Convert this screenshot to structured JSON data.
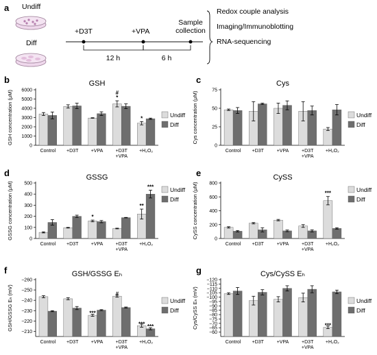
{
  "panel_a": {
    "letter": "a",
    "dish_labels": [
      "Undiff",
      "Diff"
    ],
    "timeline_labels": [
      "+D3T",
      "+VPA",
      "Sample collection"
    ],
    "intervals": [
      "12 h",
      "6 h"
    ],
    "analyses": [
      "Redox couple analysis",
      "Imaging/Immunoblotting",
      "RNA-sequencing"
    ]
  },
  "colors": {
    "undiff": "#dcdcdc",
    "diff": "#6e6e6e",
    "axis": "#000000"
  },
  "legend": [
    "Undiff",
    "Diff"
  ],
  "chart_data": [
    {
      "panel": "b",
      "type": "bar",
      "title": "GSH",
      "ylabel": "GSH concentration (μM)",
      "categories": [
        "Control",
        "+D3T",
        "+VPA",
        "+D3T\n+VPA",
        "+H₂O₂"
      ],
      "ylim": [
        0,
        6000
      ],
      "yticks": [
        0,
        1000,
        2000,
        3000,
        4000,
        5000,
        6000
      ],
      "series": [
        {
          "name": "Undiff",
          "values": [
            3380,
            4200,
            2950,
            4480,
            2390
          ],
          "errors": [
            160,
            180,
            30,
            330,
            180
          ]
        },
        {
          "name": "Diff",
          "values": [
            3230,
            4260,
            3420,
            4220,
            2870
          ],
          "errors": [
            370,
            290,
            200,
            260,
            70
          ]
        }
      ],
      "annotations": [
        {
          "series": 0,
          "index": 3,
          "text": "#\n*"
        },
        {
          "series": 0,
          "index": 4,
          "text": "*"
        }
      ]
    },
    {
      "panel": "c",
      "type": "bar",
      "title": "Cys",
      "ylabel": "Cys concentration (μM)",
      "categories": [
        "Control",
        "+D3T",
        "+VPA",
        "+D3T\n+VPA",
        "+H₂O₂"
      ],
      "ylim": [
        0,
        75
      ],
      "yticks": [
        0,
        25,
        50,
        75
      ],
      "series": [
        {
          "name": "Undiff",
          "values": [
            48,
            46,
            50,
            46,
            22
          ],
          "errors": [
            1,
            13,
            7,
            13,
            2
          ]
        },
        {
          "name": "Diff",
          "values": [
            47,
            56,
            54,
            47,
            48
          ],
          "errors": [
            4,
            1,
            6,
            6,
            7
          ]
        }
      ],
      "annotations": []
    },
    {
      "panel": "d",
      "type": "bar",
      "title": "GSSG",
      "ylabel": "GSSG concentration (μM)",
      "categories": [
        "Control",
        "+D3T",
        "+VPA",
        "+D3T\n+VPA",
        "+H₂O₂"
      ],
      "ylim": [
        0,
        500
      ],
      "yticks": [
        0,
        100,
        200,
        300,
        400,
        500
      ],
      "series": [
        {
          "name": "Undiff",
          "values": [
            55,
            97,
            158,
            90,
            220
          ],
          "errors": [
            5,
            3,
            8,
            3,
            45
          ]
        },
        {
          "name": "Diff",
          "values": [
            145,
            200,
            152,
            188,
            400
          ],
          "errors": [
            25,
            10,
            10,
            2,
            35
          ]
        }
      ],
      "annotations": [
        {
          "series": 0,
          "index": 2,
          "text": "*"
        },
        {
          "series": 0,
          "index": 4,
          "text": "**"
        },
        {
          "series": 1,
          "index": 4,
          "text": "***"
        }
      ]
    },
    {
      "panel": "e",
      "type": "bar",
      "title": "CySS",
      "ylabel": "CySS concentration (μM)",
      "categories": [
        "Control",
        "+D3T",
        "+VPA",
        "+D3T\n+VPA",
        "+H₂O₂"
      ],
      "ylim": [
        0,
        800
      ],
      "yticks": [
        0,
        200,
        400,
        600,
        800
      ],
      "series": [
        {
          "name": "Undiff",
          "values": [
            160,
            220,
            265,
            180,
            545
          ],
          "errors": [
            10,
            10,
            10,
            20,
            60
          ]
        },
        {
          "name": "Diff",
          "values": [
            105,
            125,
            110,
            110,
            145
          ],
          "errors": [
            10,
            30,
            12,
            15,
            10
          ]
        }
      ],
      "annotations": [
        {
          "series": 0,
          "index": 4,
          "text": "***"
        }
      ]
    },
    {
      "panel": "f",
      "type": "bar",
      "title": "GSH/GSSG Eₕ",
      "ylabel": "GSH/GSSG Eₕ (mV)",
      "categories": [
        "Control",
        "+D3T",
        "+VPA",
        "+D3T\n+VPA",
        "+H₂O₂"
      ],
      "ylim": [
        -205,
        -260
      ],
      "yticks": [
        -210,
        -220,
        -230,
        -240,
        -250,
        -260
      ],
      "baseline": -205,
      "series": [
        {
          "name": "Undiff",
          "values": [
            -243.5,
            -241.5,
            -225.5,
            -244,
            -215.5
          ],
          "errors": [
            1,
            1,
            1,
            1,
            1.5
          ]
        },
        {
          "name": "Diff",
          "values": [
            -229.5,
            -232.5,
            -230.5,
            -233,
            -212.5
          ],
          "errors": [
            0.5,
            1.5,
            0.5,
            0.5,
            1
          ]
        }
      ],
      "annotations": [
        {
          "series": 0,
          "index": 2,
          "text": "***"
        },
        {
          "series": 0,
          "index": 3,
          "text": "#"
        },
        {
          "series": 0,
          "index": 4,
          "text": "***"
        },
        {
          "series": 1,
          "index": 4,
          "text": "***"
        }
      ]
    },
    {
      "panel": "g",
      "type": "bar",
      "title": "Cys/CySS Eₕ",
      "ylabel": "Cys/CySS Eₕ (mV)",
      "categories": [
        "Control",
        "+D3T",
        "+VPA",
        "+D3T\n+VPA",
        "+H₂O₂"
      ],
      "ylim": [
        -55,
        -120
      ],
      "yticks": [
        -60,
        -65,
        -70,
        -75,
        -80,
        -85,
        -90,
        -95,
        -100,
        -105,
        -110,
        -115,
        -120
      ],
      "baseline": -55,
      "series": [
        {
          "name": "Undiff",
          "values": [
            -104,
            -96,
            -97.5,
            -99.5,
            -65.5
          ],
          "errors": [
            1,
            5,
            3,
            5,
            1.5
          ]
        },
        {
          "name": "Diff",
          "values": [
            -107,
            -105.5,
            -110,
            -109,
            -106
          ],
          "errors": [
            4,
            3,
            3,
            4,
            2
          ]
        }
      ],
      "annotations": [
        {
          "series": 0,
          "index": 4,
          "text": "***"
        }
      ]
    }
  ]
}
